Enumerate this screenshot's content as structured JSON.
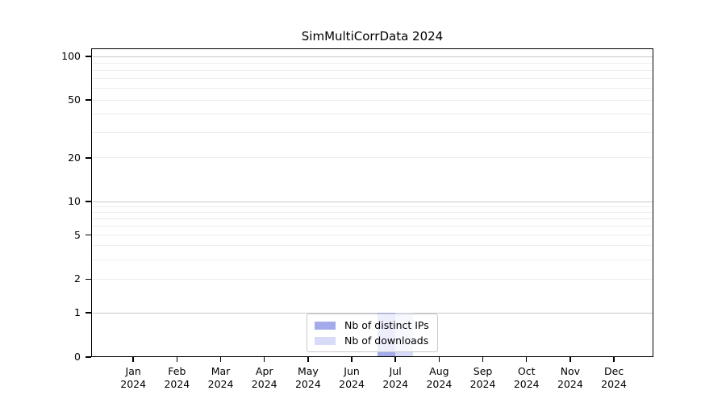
{
  "chart_data": {
    "type": "bar",
    "title": "SimMultiCorrData 2024",
    "categories": [
      "Jan",
      "Feb",
      "Mar",
      "Apr",
      "May",
      "Jun",
      "Jul",
      "Aug",
      "Sep",
      "Oct",
      "Nov",
      "Dec"
    ],
    "category_year": "2024",
    "series": [
      {
        "name": "Nb of distinct IPs",
        "color": "#a3abeb",
        "values": [
          0,
          0,
          0,
          0,
          0,
          0,
          1,
          0,
          0,
          0,
          0,
          0
        ]
      },
      {
        "name": "Nb of downloads",
        "color": "#d7dbf8",
        "values": [
          0,
          0,
          0,
          0,
          0,
          0,
          1,
          0,
          0,
          0,
          0,
          0
        ]
      }
    ],
    "y_axis": {
      "scale": "symlog",
      "tick_values": [
        0,
        1,
        2,
        5,
        10,
        20,
        50,
        100
      ],
      "tick_labels": [
        "0",
        "1",
        "2",
        "5",
        "10",
        "20",
        "50",
        "100"
      ],
      "range": [
        0,
        114
      ]
    },
    "grid": {
      "enabled": true,
      "major_values": [
        1,
        10,
        100
      ],
      "minor_values": [
        2,
        3,
        4,
        5,
        6,
        7,
        8,
        9,
        20,
        30,
        40,
        50,
        60,
        70,
        80,
        90
      ]
    },
    "legend": {
      "position": "lower center",
      "entries": [
        "Nb of distinct IPs",
        "Nb of downloads"
      ]
    },
    "colors": {
      "major_grid": "#c8c8c8",
      "minor_grid": "#ededed",
      "spine": "#000000",
      "background": "#ffffff"
    }
  }
}
